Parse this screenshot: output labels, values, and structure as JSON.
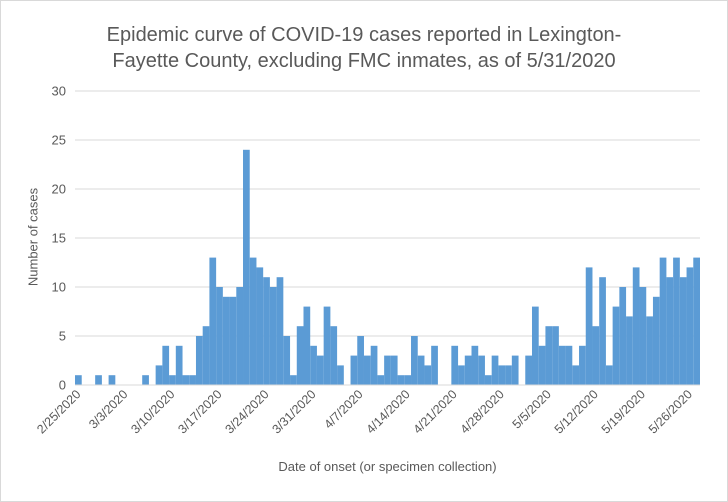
{
  "chart_data": {
    "type": "bar",
    "title_line1": "Epidemic curve of COVID-19 cases reported in Lexington-",
    "title_line2": "Fayette County, excluding FMC inmates, as of 5/31/2020",
    "xlabel": "Date of onset (or specimen collection)",
    "ylabel": "Number of cases",
    "ylim": [
      0,
      30
    ],
    "yticks": [
      0,
      5,
      10,
      15,
      20,
      25,
      30
    ],
    "grid": true,
    "legend": "none",
    "bar_color": "#5b9bd5",
    "start_date": "2/25/2020",
    "x_tick_labels": [
      "2/25/2020",
      "3/3/2020",
      "3/10/2020",
      "3/17/2020",
      "3/24/2020",
      "3/31/2020",
      "4/7/2020",
      "4/14/2020",
      "4/21/2020",
      "4/28/2020",
      "5/5/2020",
      "5/12/2020",
      "5/19/2020",
      "5/26/2020"
    ],
    "values": [
      1,
      0,
      0,
      1,
      0,
      1,
      0,
      0,
      0,
      0,
      1,
      0,
      2,
      4,
      1,
      4,
      1,
      1,
      5,
      6,
      13,
      10,
      9,
      9,
      10,
      24,
      13,
      12,
      11,
      10,
      11,
      5,
      1,
      6,
      8,
      4,
      3,
      8,
      6,
      2,
      0,
      3,
      5,
      3,
      4,
      1,
      3,
      3,
      1,
      1,
      5,
      3,
      2,
      4,
      0,
      0,
      4,
      2,
      3,
      4,
      3,
      1,
      3,
      2,
      2,
      3,
      0,
      3,
      8,
      4,
      6,
      6,
      4,
      4,
      2,
      4,
      12,
      6,
      11,
      2,
      8,
      10,
      7,
      12,
      10,
      7,
      9,
      13,
      11,
      13,
      11,
      12,
      13
    ]
  }
}
